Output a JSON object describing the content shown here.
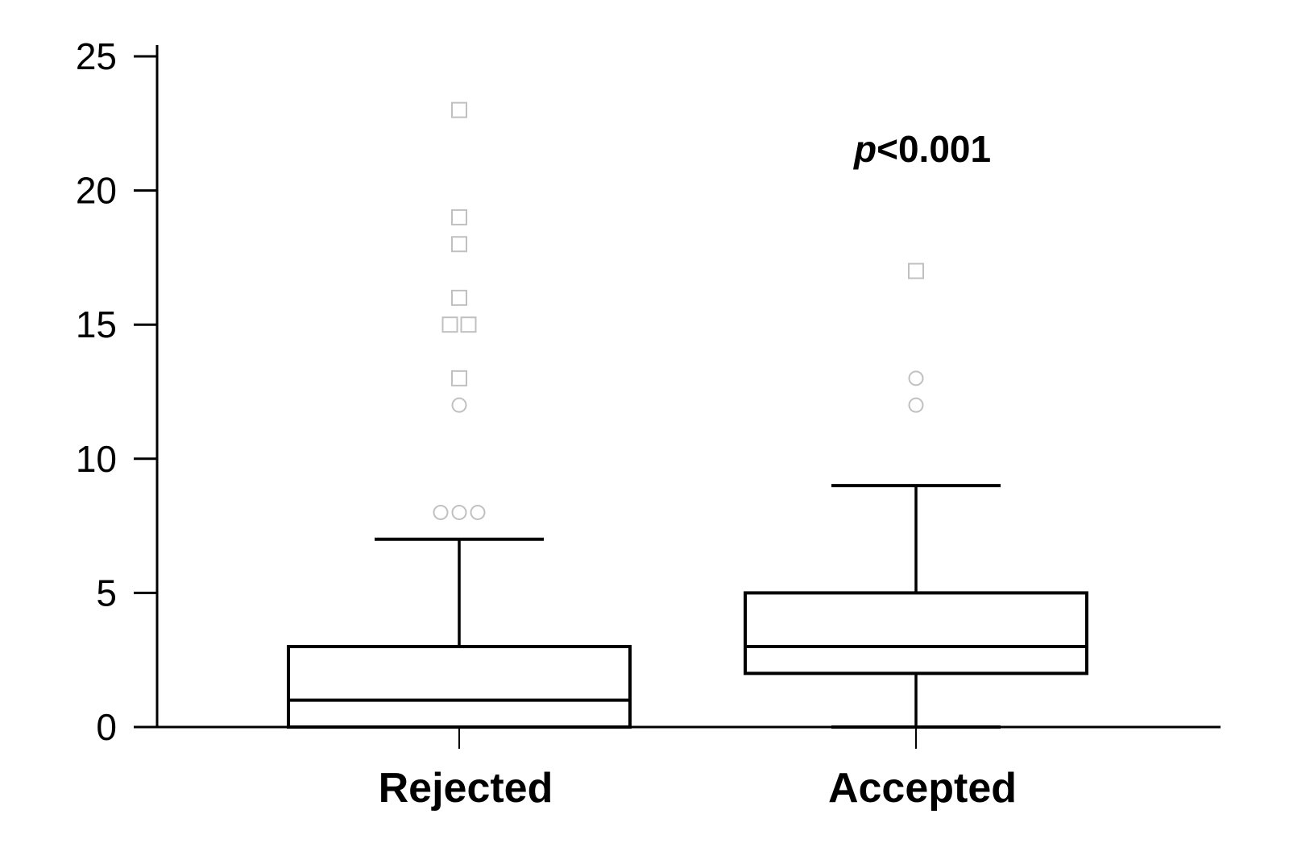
{
  "chart_data": {
    "type": "box",
    "ylim": [
      0,
      25
    ],
    "yticks": [
      0,
      5,
      10,
      15,
      20,
      25
    ],
    "categories": [
      "Rejected",
      "Accepted"
    ],
    "boxes": [
      {
        "category": "Rejected",
        "whisker_low": 0,
        "q1": 0,
        "median": 1,
        "q3": 3,
        "whisker_high": 7,
        "outliers": [
          8,
          8,
          8,
          12
        ],
        "extremes": [
          13,
          15,
          15,
          16,
          18,
          19,
          23
        ]
      },
      {
        "category": "Accepted",
        "whisker_low": 0,
        "q1": 2,
        "median": 3,
        "q3": 5,
        "whisker_high": 9,
        "outliers": [
          12,
          13
        ],
        "extremes": [
          17
        ]
      }
    ],
    "annotation": {
      "italic": "p",
      "rest": "<0.001"
    },
    "colors": {
      "box": "#000000",
      "outlier": "#c0c0c0"
    }
  }
}
